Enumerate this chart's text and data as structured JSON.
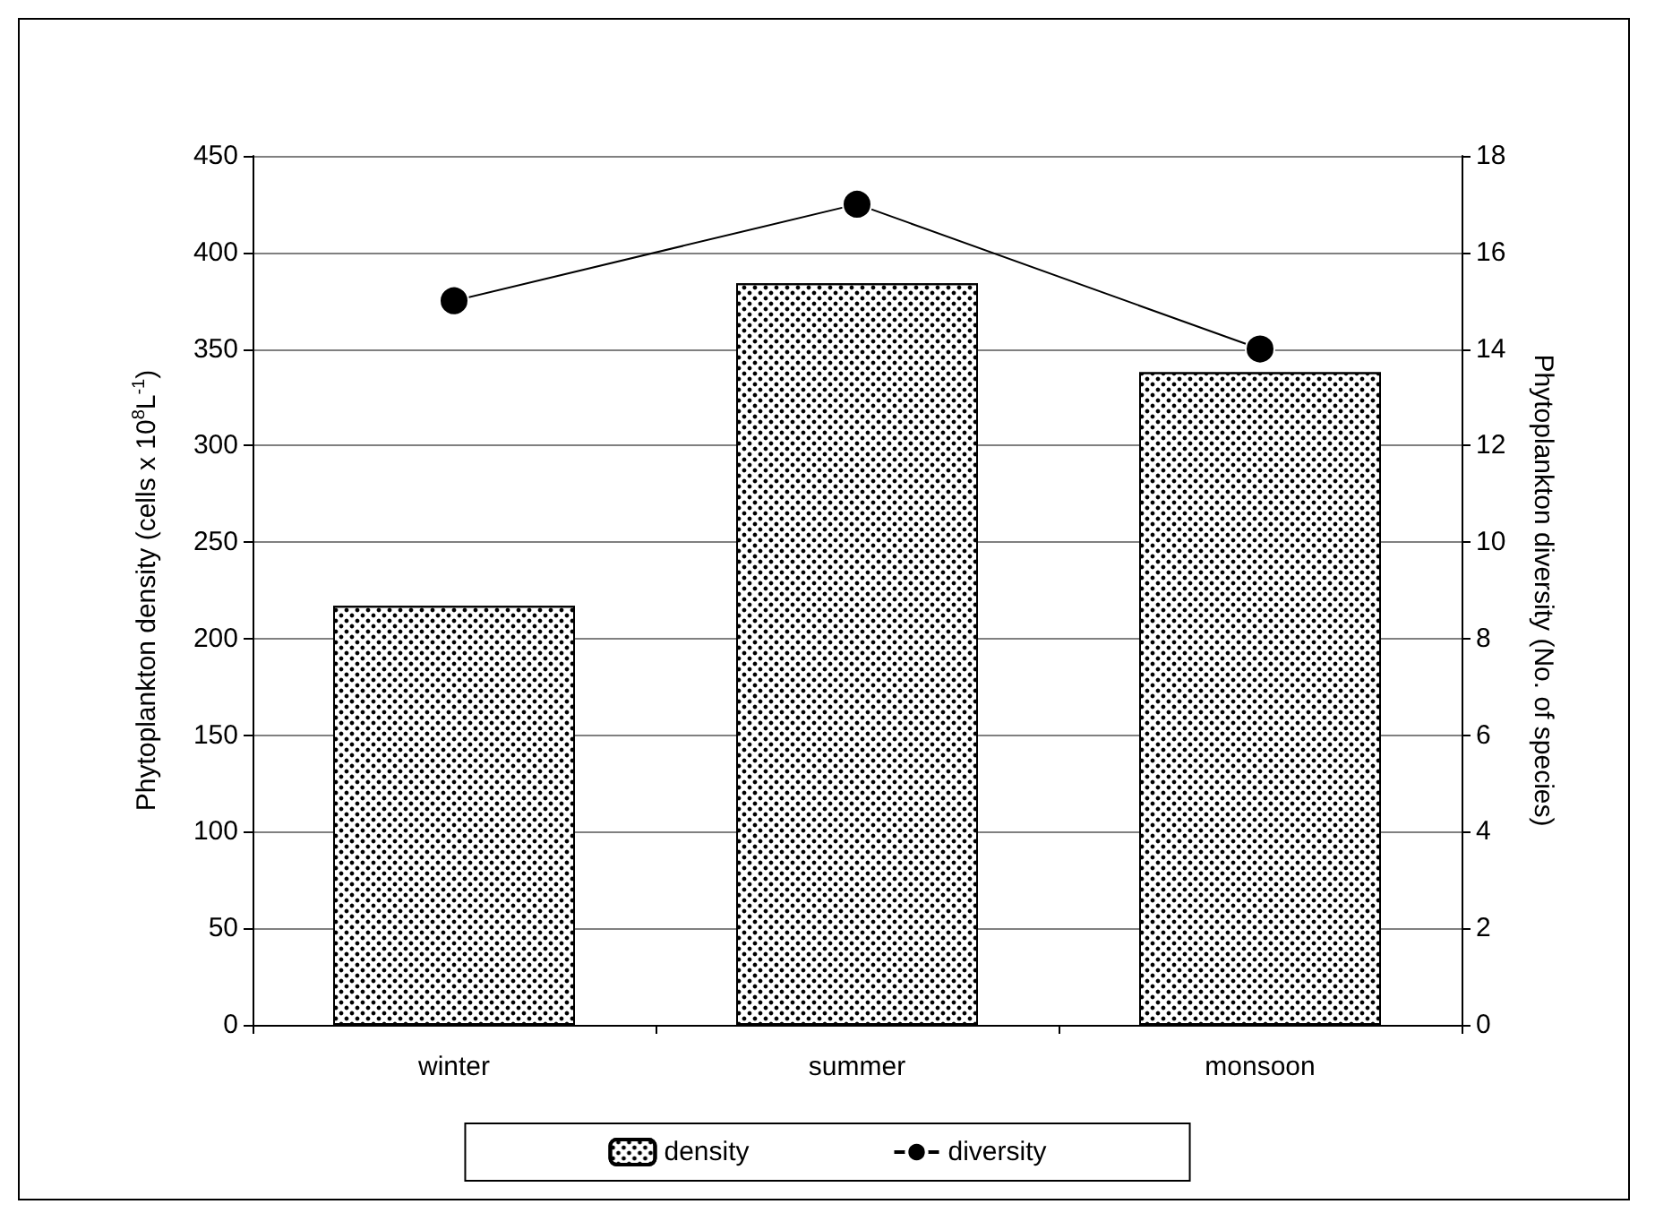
{
  "chart_data": {
    "type": "bar",
    "categories": [
      "winter",
      "summer",
      "monsoon"
    ],
    "series": [
      {
        "name": "density",
        "color": "#000000",
        "values": [
          217,
          384,
          338
        ]
      },
      {
        "name": "diversity",
        "type": "line",
        "axis": "y2",
        "color": "#000000",
        "values": [
          15,
          17,
          14
        ],
        "marker": "circle",
        "line_style": "solid"
      }
    ],
    "ylabel": "Phytoplankton density (cells x 10$^{8}$L$^{-1}$)",
    "y2label": "Phytoplankton diversity (No. of species)",
    "ylim": [
      0,
      450
    ],
    "yticks": [
      0,
      50,
      100,
      150,
      200,
      250,
      300,
      350,
      400,
      450
    ],
    "y2lim": [
      0,
      18
    ],
    "y2ticks": [
      0,
      2,
      4,
      6,
      8,
      10,
      12,
      14,
      16,
      18
    ],
    "grid": "y",
    "legend": "bottom"
  }
}
